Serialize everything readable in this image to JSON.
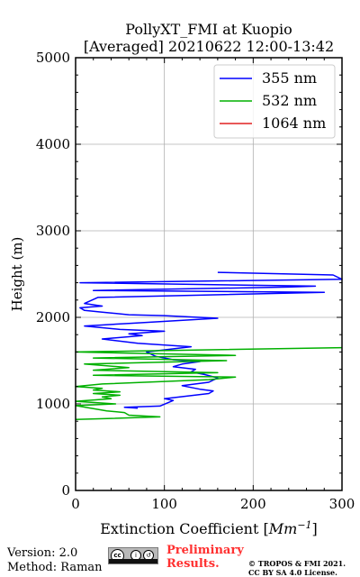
{
  "chart_data": {
    "type": "line",
    "title": "PollyXT_FMI at Kuopio",
    "subtitle": "[Averaged] 20210622 12:00-13:42",
    "xlabel_prefix": "Extinction Coefficient [",
    "xlabel_unit": "Mm",
    "xlabel_exp": "−1",
    "xlabel_suffix": "]",
    "ylabel": "Height (m)",
    "xlim": [
      0,
      300
    ],
    "ylim": [
      0,
      5000
    ],
    "x_ticks": [
      0,
      100,
      200,
      300
    ],
    "x_tick_labels": [
      "0",
      "100",
      "200",
      "300"
    ],
    "y_ticks": [
      0,
      1000,
      2000,
      3000,
      4000,
      5000
    ],
    "y_tick_labels": [
      "0",
      "1000",
      "2000",
      "3000",
      "4000",
      "5000"
    ],
    "grid": true,
    "legend_position": "top-right",
    "series": [
      {
        "name": "355 nm",
        "color": "#0000ff",
        "points": [
          [
            70,
            950
          ],
          [
            55,
            960
          ],
          [
            95,
            975
          ],
          [
            110,
            1040
          ],
          [
            100,
            1060
          ],
          [
            150,
            1120
          ],
          [
            155,
            1150
          ],
          [
            140,
            1170
          ],
          [
            120,
            1210
          ],
          [
            150,
            1250
          ],
          [
            160,
            1300
          ],
          [
            145,
            1340
          ],
          [
            130,
            1370
          ],
          [
            135,
            1400
          ],
          [
            110,
            1430
          ],
          [
            120,
            1460
          ],
          [
            140,
            1490
          ],
          [
            110,
            1510
          ],
          [
            90,
            1550
          ],
          [
            80,
            1600
          ],
          [
            130,
            1660
          ],
          [
            70,
            1700
          ],
          [
            30,
            1750
          ],
          [
            75,
            1790
          ],
          [
            60,
            1810
          ],
          [
            100,
            1840
          ],
          [
            50,
            1860
          ],
          [
            10,
            1900
          ],
          [
            60,
            1930
          ],
          [
            160,
            1990
          ],
          [
            100,
            2020
          ],
          [
            60,
            2030
          ],
          [
            30,
            2060
          ],
          [
            10,
            2080
          ],
          [
            5,
            2110
          ],
          [
            30,
            2130
          ],
          [
            10,
            2160
          ],
          [
            25,
            2230
          ],
          [
            280,
            2290
          ],
          [
            20,
            2310
          ],
          [
            240,
            2350
          ],
          [
            270,
            2360
          ],
          [
            5,
            2400
          ],
          [
            300,
            2440
          ],
          [
            290,
            2490
          ],
          [
            160,
            2520
          ]
        ]
      },
      {
        "name": "532 nm",
        "color": "#00b000",
        "points": [
          [
            0,
            820
          ],
          [
            95,
            850
          ],
          [
            60,
            870
          ],
          [
            55,
            900
          ],
          [
            35,
            920
          ],
          [
            0,
            980
          ],
          [
            45,
            1000
          ],
          [
            0,
            1030
          ],
          [
            40,
            1060
          ],
          [
            30,
            1080
          ],
          [
            50,
            1100
          ],
          [
            20,
            1120
          ],
          [
            50,
            1140
          ],
          [
            20,
            1160
          ],
          [
            30,
            1180
          ],
          [
            0,
            1200
          ],
          [
            30,
            1230
          ],
          [
            150,
            1280
          ],
          [
            180,
            1310
          ],
          [
            20,
            1330
          ],
          [
            160,
            1360
          ],
          [
            20,
            1390
          ],
          [
            60,
            1420
          ],
          [
            10,
            1460
          ],
          [
            170,
            1500
          ],
          [
            20,
            1530
          ],
          [
            180,
            1560
          ],
          [
            0,
            1600
          ],
          [
            300,
            1650
          ]
        ]
      },
      {
        "name": "1064 nm",
        "color": "#e02020",
        "points": []
      }
    ]
  },
  "footer": {
    "version": "Version: 2.0",
    "method": "Method: Raman",
    "prelim_line1": "Preliminary",
    "prelim_line2": "Results.",
    "license_line1": "© TROPOS & FMI 2021.",
    "license_line2": "CC BY SA 4.0 License.",
    "cc_label": "cc",
    "by_label": "BY",
    "sa_label": "SA"
  }
}
